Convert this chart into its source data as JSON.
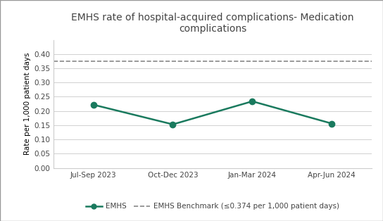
{
  "title": "EMHS rate of hospital-acquired complications- Medication\ncomplications",
  "xlabel": "",
  "ylabel": "Rate per 1,000 patient days",
  "categories": [
    "Jul-Sep 2023",
    "Oct-Dec 2023",
    "Jan-Mar 2024",
    "Apr-Jun 2024"
  ],
  "emhs_values": [
    0.222,
    0.153,
    0.234,
    0.156
  ],
  "benchmark_value": 0.374,
  "ylim": [
    0.0,
    0.45
  ],
  "yticks": [
    0.0,
    0.05,
    0.1,
    0.15,
    0.2,
    0.25,
    0.3,
    0.35,
    0.4
  ],
  "emhs_color": "#1a7a5e",
  "benchmark_color": "#888888",
  "background_color": "#ffffff",
  "border_color": "#aaaaaa",
  "title_fontsize": 10,
  "axis_label_fontsize": 7.5,
  "tick_fontsize": 7.5,
  "legend_fontsize": 7.5,
  "legend_emhs_label": "EMHS",
  "legend_benchmark_label": "EMHS Benchmark (≤0.374 per 1,000 patient days)"
}
